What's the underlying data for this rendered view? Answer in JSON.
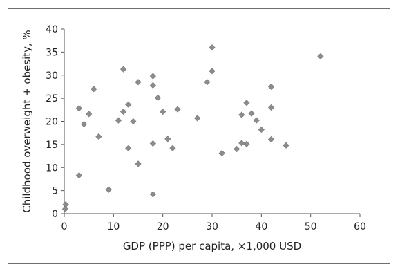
{
  "chart_data": {
    "type": "scatter",
    "title": "",
    "xlabel": "GDP (PPP) per capita, ×1,000 USD",
    "ylabel": "Childhood overweight + obesity, %",
    "xlim": [
      0,
      60
    ],
    "ylim": [
      0,
      40
    ],
    "xticks": [
      0,
      10,
      20,
      30,
      40,
      50,
      60
    ],
    "yticks": [
      0,
      5,
      10,
      15,
      20,
      25,
      30,
      35,
      40
    ],
    "grid": false,
    "legend": "none",
    "marker": "diamond",
    "marker_color": "#8c8c8c",
    "points": [
      {
        "x": 0.3,
        "y": 2.0
      },
      {
        "x": 0.2,
        "y": 1.0
      },
      {
        "x": 3,
        "y": 22.8
      },
      {
        "x": 3,
        "y": 8.3
      },
      {
        "x": 4,
        "y": 19.4
      },
      {
        "x": 5,
        "y": 21.6
      },
      {
        "x": 6,
        "y": 27.0
      },
      {
        "x": 7,
        "y": 16.7
      },
      {
        "x": 9,
        "y": 5.2
      },
      {
        "x": 11,
        "y": 20.2
      },
      {
        "x": 12,
        "y": 31.3
      },
      {
        "x": 12,
        "y": 22.1
      },
      {
        "x": 13,
        "y": 23.6
      },
      {
        "x": 13,
        "y": 14.2
      },
      {
        "x": 14,
        "y": 20.0
      },
      {
        "x": 15,
        "y": 28.5
      },
      {
        "x": 15,
        "y": 10.8
      },
      {
        "x": 18,
        "y": 29.8
      },
      {
        "x": 18,
        "y": 27.8
      },
      {
        "x": 18,
        "y": 15.2
      },
      {
        "x": 18,
        "y": 4.2
      },
      {
        "x": 19,
        "y": 25.1
      },
      {
        "x": 20,
        "y": 22.1
      },
      {
        "x": 21,
        "y": 16.2
      },
      {
        "x": 22,
        "y": 14.2
      },
      {
        "x": 23,
        "y": 22.6
      },
      {
        "x": 27,
        "y": 20.7
      },
      {
        "x": 29,
        "y": 28.5
      },
      {
        "x": 30,
        "y": 36.0
      },
      {
        "x": 30,
        "y": 30.9
      },
      {
        "x": 32,
        "y": 13.1
      },
      {
        "x": 35,
        "y": 14.0
      },
      {
        "x": 36,
        "y": 21.4
      },
      {
        "x": 36,
        "y": 15.3
      },
      {
        "x": 37,
        "y": 24.0
      },
      {
        "x": 37,
        "y": 15.1
      },
      {
        "x": 38,
        "y": 21.7
      },
      {
        "x": 39,
        "y": 20.2
      },
      {
        "x": 40,
        "y": 18.2
      },
      {
        "x": 42,
        "y": 27.5
      },
      {
        "x": 42,
        "y": 23.0
      },
      {
        "x": 42,
        "y": 16.1
      },
      {
        "x": 45,
        "y": 14.8
      },
      {
        "x": 52,
        "y": 34.1
      }
    ]
  }
}
